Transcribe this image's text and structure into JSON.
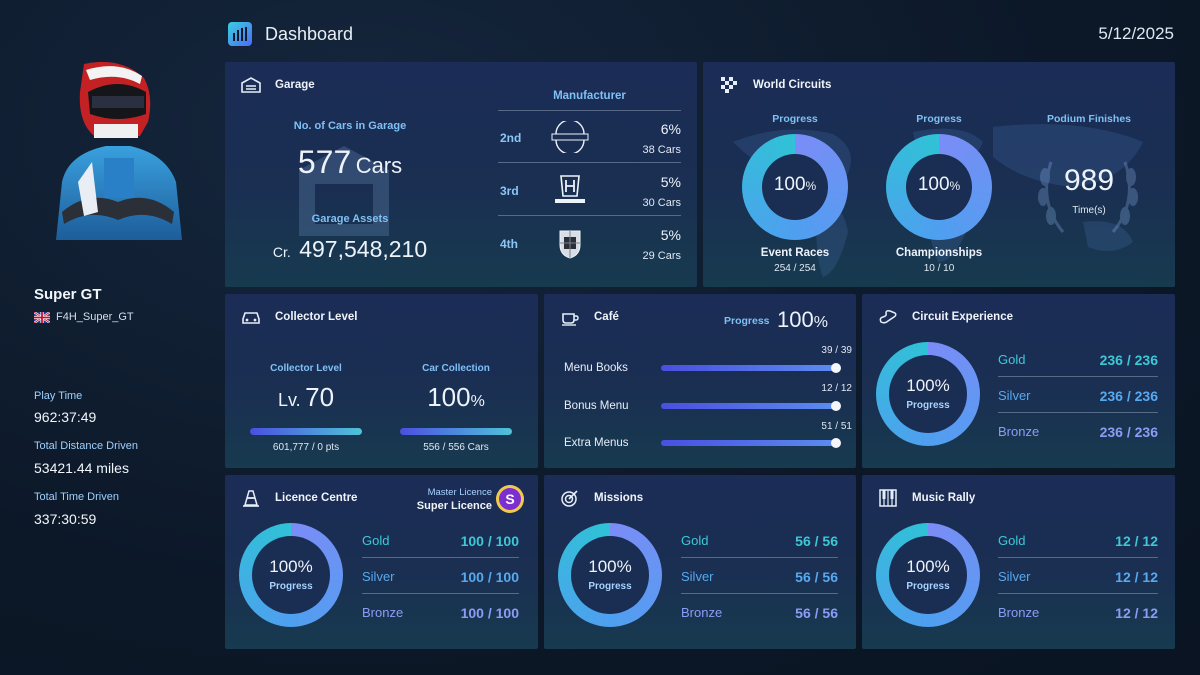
{
  "header": {
    "title": "Dashboard",
    "date": "5/12/2025"
  },
  "player": {
    "name": "Super GT",
    "id": "F4H_Super_GT",
    "stats": [
      {
        "label": "Play Time",
        "value": "962:37:49"
      },
      {
        "label": "Total Distance Driven",
        "value": "53421.44 miles"
      },
      {
        "label": "Total Time Driven",
        "value": "337:30:59"
      }
    ]
  },
  "garage": {
    "title": "Garage",
    "cars_label": "No. of Cars in Garage",
    "cars_count": "577",
    "cars_unit": "Cars",
    "assets_label": "Garage Assets",
    "currency": "Cr.",
    "assets_value": "497,548,210",
    "manufacturer_label": "Manufacturer",
    "manufacturers": [
      {
        "rank": "2nd",
        "name": "NISSAN",
        "pct": "6%",
        "cars": "38 Cars"
      },
      {
        "rank": "3rd",
        "name": "HONDA",
        "pct": "5%",
        "cars": "30 Cars"
      },
      {
        "rank": "4th",
        "name": "PORSCHE",
        "pct": "5%",
        "cars": "29 Cars"
      }
    ]
  },
  "circuits": {
    "title": "World Circuits",
    "event": {
      "label": "Progress",
      "value": "100",
      "unit": "%",
      "name": "Event Races",
      "count": "254 / 254",
      "progress": 1.0
    },
    "champ": {
      "label": "Progress",
      "value": "100",
      "unit": "%",
      "name": "Championships",
      "count": "10 / 10",
      "progress": 1.0
    },
    "podium": {
      "label": "Podium Finishes",
      "value": "989",
      "unit": "Time(s)"
    }
  },
  "collector": {
    "title": "Collector Level",
    "level_label": "Collector Level",
    "level_prefix": "Lv.",
    "level_value": "70",
    "level_pts": "601,777 / 0  pts",
    "level_progress": 1.0,
    "collection_label": "Car Collection",
    "collection_value": "100",
    "collection_unit": "%",
    "collection_count": "556 / 556  Cars",
    "collection_progress": 1.0
  },
  "cafe": {
    "title": "Café",
    "progress_label": "Progress",
    "progress_value": "100",
    "progress_unit": "%",
    "items": [
      {
        "label": "Menu Books",
        "count": "39 / 39",
        "progress": 1.0
      },
      {
        "label": "Bonus Menu",
        "count": "12 / 12",
        "progress": 1.0
      },
      {
        "label": "Extra Menus",
        "count": "51 / 51",
        "progress": 1.0
      }
    ]
  },
  "circuit_exp": {
    "title": "Circuit Experience",
    "ring_value": "100%",
    "ring_label": "Progress",
    "progress": 1.0,
    "medals": [
      {
        "name": "Gold",
        "value": "236 / 236"
      },
      {
        "name": "Silver",
        "value": "236 / 236"
      },
      {
        "name": "Bronze",
        "value": "236 / 236"
      }
    ]
  },
  "licence": {
    "title": "Licence Centre",
    "master_label": "Master Licence",
    "master_value": "Super Licence",
    "badge": "S",
    "ring_value": "100%",
    "ring_label": "Progress",
    "progress": 1.0,
    "medals": [
      {
        "name": "Gold",
        "value": "100 / 100"
      },
      {
        "name": "Silver",
        "value": "100 / 100"
      },
      {
        "name": "Bronze",
        "value": "100 / 100"
      }
    ]
  },
  "missions": {
    "title": "Missions",
    "ring_value": "100%",
    "ring_label": "Progress",
    "progress": 1.0,
    "medals": [
      {
        "name": "Gold",
        "value": "56 / 56"
      },
      {
        "name": "Silver",
        "value": "56 / 56"
      },
      {
        "name": "Bronze",
        "value": "56 / 56"
      }
    ]
  },
  "music": {
    "title": "Music Rally",
    "ring_value": "100%",
    "ring_label": "Progress",
    "progress": 1.0,
    "medals": [
      {
        "name": "Gold",
        "value": "12 / 12"
      },
      {
        "name": "Silver",
        "value": "12 / 12"
      },
      {
        "name": "Bronze",
        "value": "12 / 12"
      }
    ]
  },
  "colors": {
    "gold": "#3dc8d6",
    "silver": "#57a9f0",
    "bronze": "#8c9cf6",
    "accent": "#4c6bf5"
  }
}
